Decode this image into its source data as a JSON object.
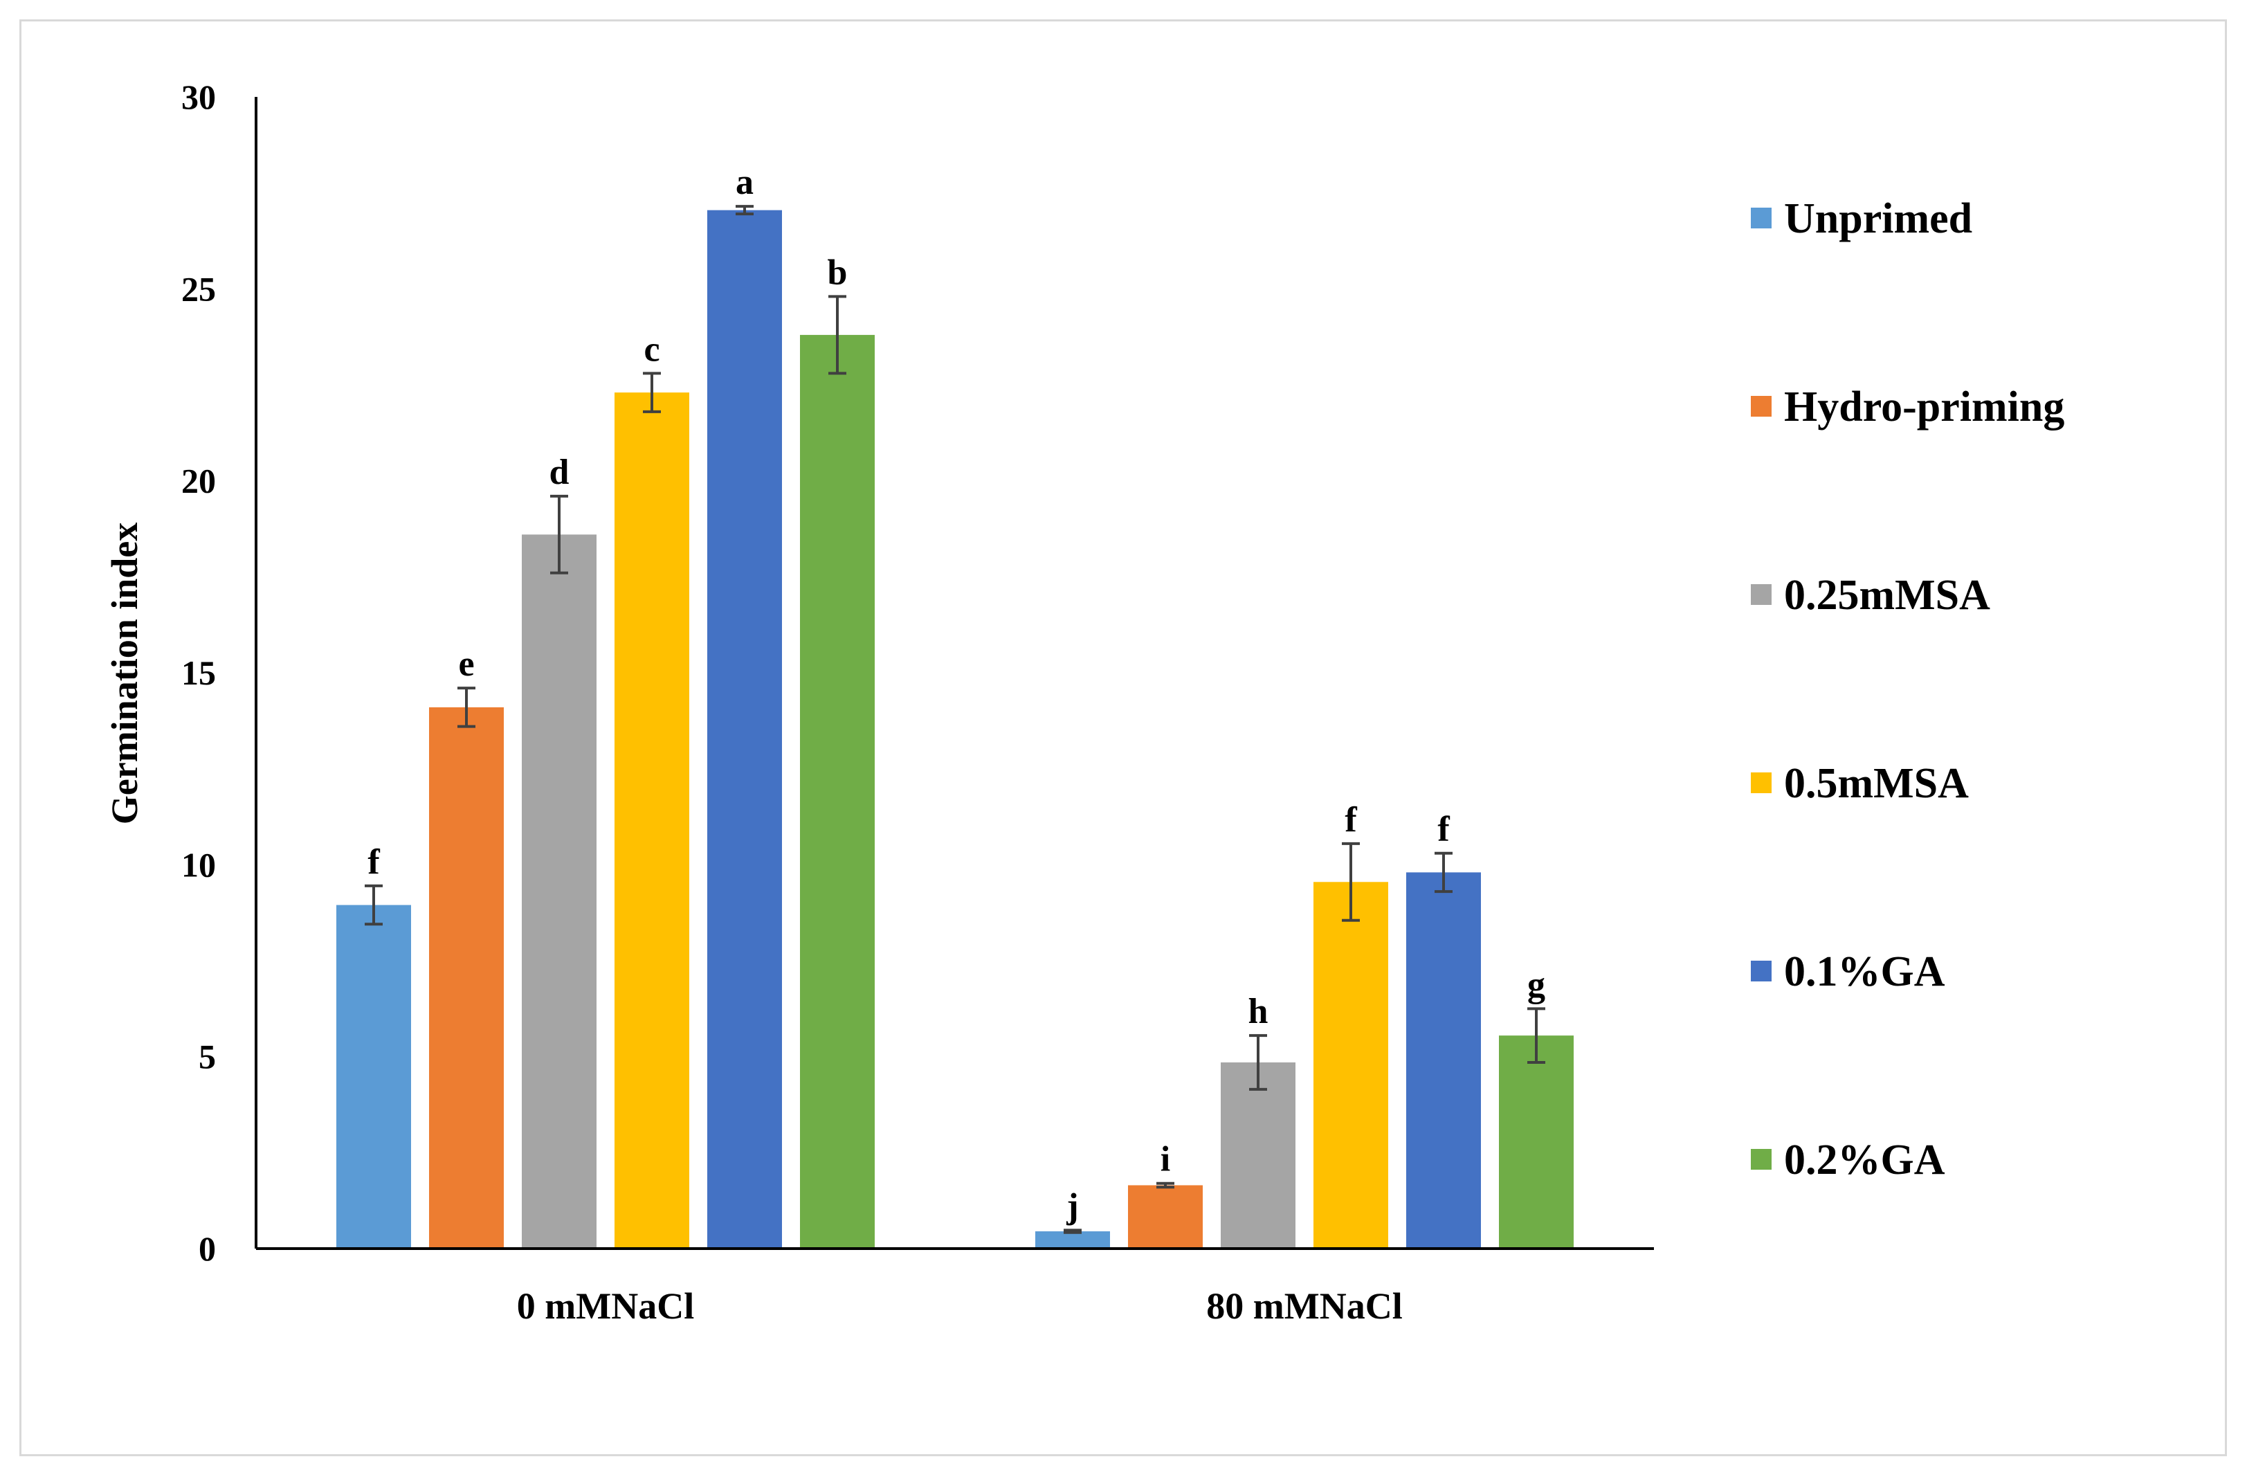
{
  "chart_data": {
    "type": "bar",
    "title": "",
    "xlabel": "",
    "ylabel": "Germination index",
    "ylim": [
      0,
      30
    ],
    "yticks": [
      0,
      5,
      10,
      15,
      20,
      25,
      30
    ],
    "grid": false,
    "legend_position": "right",
    "categories": [
      "0 mMNaCl",
      "80 mMNaCl"
    ],
    "series": [
      {
        "name": "Unprimed",
        "color": "#5b9bd5",
        "values": [
          8.95,
          0.45
        ],
        "errors": [
          0.5,
          0.03
        ],
        "letters": [
          "f",
          "j"
        ]
      },
      {
        "name": "Hydro-priming",
        "color": "#ed7d31",
        "values": [
          14.1,
          1.65
        ],
        "errors": [
          0.5,
          0.05
        ],
        "letters": [
          "e",
          "i"
        ]
      },
      {
        "name": "0.25mMSA",
        "color": "#a5a5a5",
        "values": [
          18.6,
          4.85
        ],
        "errors": [
          1.0,
          0.7
        ],
        "letters": [
          "d",
          "h"
        ]
      },
      {
        "name": "0.5mMSA",
        "color": "#ffc000",
        "values": [
          22.3,
          9.55
        ],
        "errors": [
          0.5,
          1.0
        ],
        "letters": [
          "c",
          "f"
        ]
      },
      {
        "name": "0.1%GA",
        "color": "#4472c4",
        "values": [
          27.05,
          9.8
        ],
        "errors": [
          0.1,
          0.5
        ],
        "letters": [
          "a",
          "f"
        ]
      },
      {
        "name": "0.2%GA",
        "color": "#70ad47",
        "values": [
          23.8,
          5.55
        ],
        "errors": [
          1.0,
          0.7
        ],
        "letters": [
          "b",
          "g"
        ]
      }
    ]
  }
}
